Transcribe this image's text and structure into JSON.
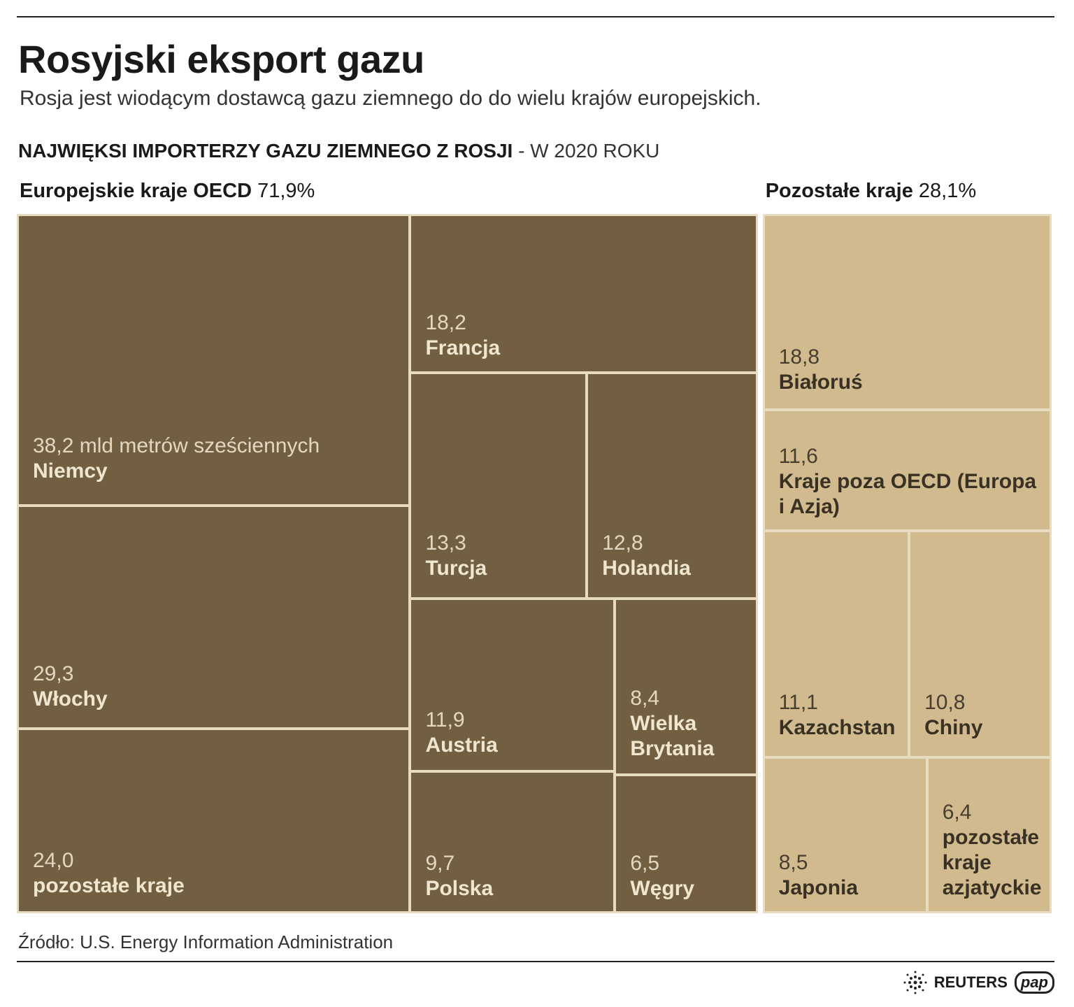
{
  "chart_data": {
    "type": "treemap",
    "title": "Rosyjski eksport gazu",
    "subtitle": "Rosja jest wiodącym dostawcą gazu ziemnego do do wielu krajów europejskich.",
    "heading": "NAJWIĘKSI IMPORTERZY GAZU ZIEMNEGO Z ROSJI",
    "heading_note": "- W 2020 ROKU",
    "groups": [
      {
        "name": "Europejskie kraje OECD",
        "share": 71.9,
        "share_label": "71,9%",
        "color": "#725f42",
        "text_color": "#efe6d0",
        "categories": [
          "Niemcy",
          "Włochy",
          "pozostałe kraje",
          "Francja",
          "Turcja",
          "Holandia",
          "Austria",
          "Polska",
          "Wielka Brytania",
          "Węgry"
        ],
        "values": [
          38.2,
          29.3,
          24.0,
          18.2,
          13.3,
          12.8,
          11.9,
          9.7,
          8.4,
          6.5
        ],
        "value_labels": [
          "38,2 mld metrów sześciennych",
          "29,3",
          "24,0",
          "18,2",
          "13,3",
          "12,8",
          "11,9",
          "9,7",
          "8,4",
          "6,5"
        ]
      },
      {
        "name": "Pozostałe kraje",
        "share": 28.1,
        "share_label": "28,1%",
        "color": "#d1bb8e",
        "text_color": "#3a3125",
        "categories": [
          "Białoruś",
          "Kraje poza OECD (Europa i Azja)",
          "Kazachstan",
          "Chiny",
          "Japonia",
          "pozostałe kraje azjatyckie"
        ],
        "values": [
          18.8,
          11.6,
          11.1,
          10.8,
          8.5,
          6.4
        ],
        "value_labels": [
          "18,8",
          "11,6",
          "11,1",
          "10,8",
          "8,5",
          "6,4"
        ]
      }
    ],
    "source": "Źródło: U.S. Energy Information Administration",
    "credits": [
      "REUTERS",
      "pap"
    ]
  }
}
